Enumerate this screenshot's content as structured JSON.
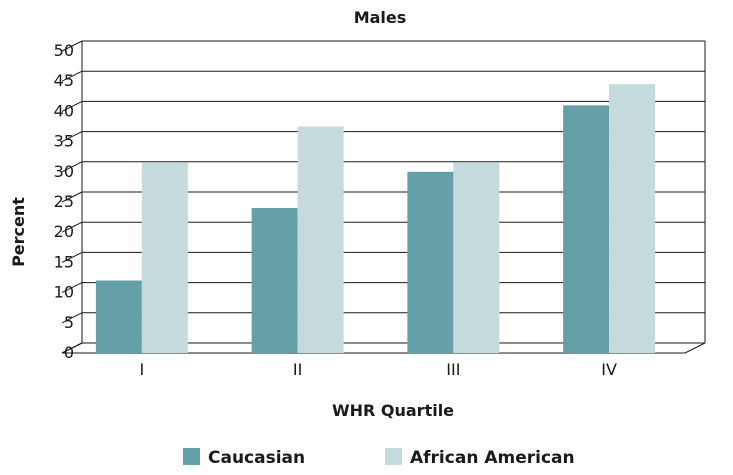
{
  "chart_data": {
    "type": "bar",
    "title": "Males",
    "xlabel": "WHR Quartile",
    "ylabel": "Percent",
    "categories": [
      "I",
      "II",
      "III",
      "IV"
    ],
    "series": [
      {
        "name": "Caucasian",
        "values": [
          12,
          24,
          30,
          41
        ],
        "color": "#65a0a9"
      },
      {
        "name": "African American",
        "values": [
          31.5,
          37.5,
          31.5,
          44.5
        ],
        "color": "#c5dadd"
      }
    ],
    "ylim": [
      0,
      50
    ],
    "yticks": [
      0,
      5,
      10,
      15,
      20,
      25,
      30,
      35,
      40,
      45,
      50
    ],
    "grid": true,
    "legend_position": "bottom"
  }
}
